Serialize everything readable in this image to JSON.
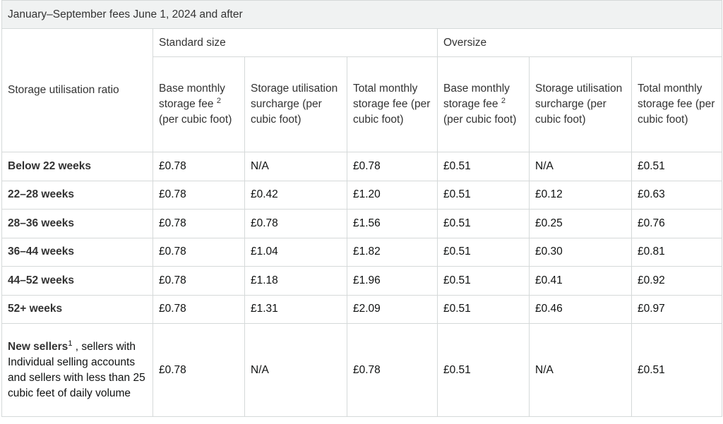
{
  "caption": "January–September fees June 1, 2024 and after",
  "groups": {
    "standard": "Standard size",
    "oversize": "Oversize"
  },
  "row_header": "Storage utilisation ratio",
  "columns": {
    "base_pre": "Base monthly storage fee",
    "base_sup": "2",
    "base_post": "(per cubic foot)",
    "surcharge": "Storage utilisation surcharge (per cubic foot)",
    "total": "Total monthly storage fee (per cubic foot)"
  },
  "rows": [
    {
      "label": "Below 22 weeks",
      "values": [
        "£0.78",
        "N/A",
        "£0.78",
        "£0.51",
        "N/A",
        "£0.51"
      ]
    },
    {
      "label": "22–28 weeks",
      "values": [
        "£0.78",
        "£0.42",
        "£1.20",
        "£0.51",
        "£0.12",
        "£0.63"
      ]
    },
    {
      "label": "28–36 weeks",
      "values": [
        "£0.78",
        "£0.78",
        "£1.56",
        "£0.51",
        "£0.25",
        "£0.76"
      ]
    },
    {
      "label": "36–44 weeks",
      "values": [
        "£0.78",
        "£1.04",
        "£1.82",
        "£0.51",
        "£0.30",
        "£0.81"
      ]
    },
    {
      "label": "44–52 weeks",
      "values": [
        "£0.78",
        "£1.18",
        "£1.96",
        "£0.51",
        "£0.41",
        "£0.92"
      ]
    },
    {
      "label": "52+ weeks",
      "values": [
        "£0.78",
        "£1.31",
        "£2.09",
        "£0.51",
        "£0.46",
        "£0.97"
      ]
    }
  ],
  "last_row": {
    "label_bold": "New sellers",
    "label_sup": "1",
    "label_rest": " , sellers with Individual selling accounts and sellers with less than 25 cubic feet of daily volume",
    "values": [
      "£0.78",
      "N/A",
      "£0.78",
      "£0.51",
      "N/A",
      "£0.51"
    ]
  }
}
